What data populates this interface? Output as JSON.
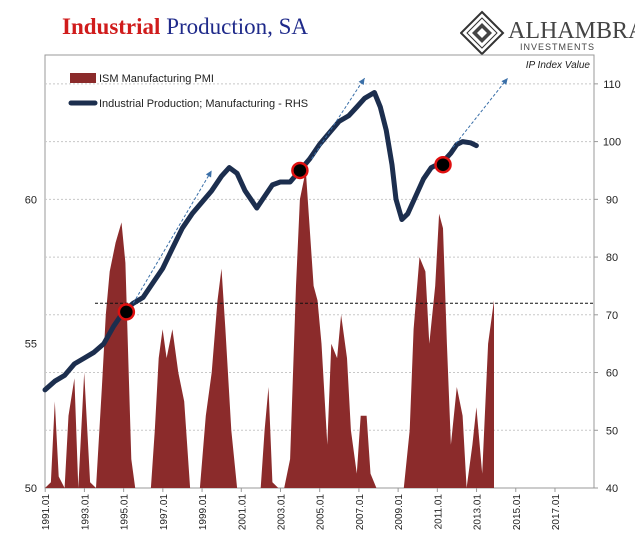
{
  "title": {
    "part1": "Industrial",
    "part2": "Production, SA"
  },
  "logo": {
    "name": "ALHAMBRA",
    "sub": "INVESTMENTS"
  },
  "colors": {
    "bar": "#8b2b2b",
    "line": "#1c2e4e",
    "arrow": "#3a6fa8",
    "marker": "#e01010",
    "title_red": "#d01c1c",
    "title_blue": "#1f2a8a"
  },
  "chart_data": {
    "type": "area",
    "annotation": "IP Index Value",
    "legend": [
      "ISM Manufacturing PMI",
      "Industrial Production; Manufacturing - RHS"
    ],
    "legend_position": "top-left",
    "left_axis": {
      "ylim": [
        50,
        65
      ],
      "ticks": [
        50,
        55,
        60
      ]
    },
    "right_axis": {
      "ylim": [
        40,
        115
      ],
      "ticks": [
        40,
        50,
        60,
        70,
        80,
        90,
        100,
        110
      ]
    },
    "x_ticks": [
      "1991.01",
      "1993.01",
      "1995.01",
      "1997.01",
      "1999.01",
      "2001.01",
      "2003.01",
      "2005.01",
      "2007.01",
      "2009.01",
      "2011.01",
      "2013.01",
      "2015.01",
      "2017.01"
    ],
    "xlim": [
      1991.0,
      2019.0
    ],
    "reference_line": {
      "axis": "right",
      "value": 72
    },
    "pmi": [
      [
        1991.0,
        40.8
      ],
      [
        1991.3,
        50.2
      ],
      [
        1991.5,
        53.0
      ],
      [
        1991.7,
        50.4
      ],
      [
        1992.0,
        47.5
      ],
      [
        1992.2,
        52.5
      ],
      [
        1992.5,
        53.8
      ],
      [
        1992.7,
        49.5
      ],
      [
        1993.0,
        54.0
      ],
      [
        1993.3,
        50.2
      ],
      [
        1993.6,
        49.5
      ],
      [
        1993.9,
        53.5
      ],
      [
        1994.1,
        56.0
      ],
      [
        1994.3,
        57.5
      ],
      [
        1994.6,
        58.5
      ],
      [
        1994.9,
        59.2
      ],
      [
        1995.1,
        57.8
      ],
      [
        1995.4,
        51.0
      ],
      [
        1995.6,
        47.5
      ],
      [
        1996.0,
        45.5
      ],
      [
        1996.4,
        49.5
      ],
      [
        1996.6,
        52.0
      ],
      [
        1996.8,
        54.5
      ],
      [
        1997.0,
        55.5
      ],
      [
        1997.2,
        54.5
      ],
      [
        1997.5,
        55.5
      ],
      [
        1997.8,
        54.0
      ],
      [
        1998.1,
        53.0
      ],
      [
        1998.4,
        49.5
      ],
      [
        1998.7,
        48.5
      ],
      [
        1998.9,
        46.5
      ],
      [
        1999.2,
        52.5
      ],
      [
        1999.5,
        54.0
      ],
      [
        1999.8,
        56.5
      ],
      [
        2000.0,
        57.6
      ],
      [
        2000.2,
        55.5
      ],
      [
        2000.5,
        52.0
      ],
      [
        2000.8,
        48.5
      ],
      [
        2001.0,
        42.5
      ],
      [
        2001.6,
        41.0
      ],
      [
        2002.0,
        48.0
      ],
      [
        2002.2,
        52.0
      ],
      [
        2002.4,
        53.5
      ],
      [
        2002.6,
        50.2
      ],
      [
        2002.9,
        48.5
      ],
      [
        2003.2,
        46.2
      ],
      [
        2003.5,
        51.0
      ],
      [
        2003.8,
        57.0
      ],
      [
        2004.0,
        60.0
      ],
      [
        2004.3,
        61.0
      ],
      [
        2004.5,
        59.0
      ],
      [
        2004.7,
        57.0
      ],
      [
        2004.9,
        56.5
      ],
      [
        2005.1,
        55.0
      ],
      [
        2005.4,
        51.5
      ],
      [
        2005.6,
        55.0
      ],
      [
        2005.9,
        54.5
      ],
      [
        2006.1,
        56.0
      ],
      [
        2006.4,
        54.5
      ],
      [
        2006.6,
        52.0
      ],
      [
        2006.9,
        50.5
      ],
      [
        2007.1,
        52.5
      ],
      [
        2007.4,
        52.5
      ],
      [
        2007.6,
        50.5
      ],
      [
        2007.9,
        49.5
      ],
      [
        2008.1,
        48.5
      ],
      [
        2008.5,
        45.0
      ],
      [
        2008.8,
        38.9
      ],
      [
        2009.0,
        35.5
      ],
      [
        2009.3,
        40.0
      ],
      [
        2009.6,
        52.0
      ],
      [
        2009.8,
        55.5
      ],
      [
        2010.1,
        58.0
      ],
      [
        2010.4,
        57.5
      ],
      [
        2010.6,
        55.0
      ],
      [
        2010.9,
        57.0
      ],
      [
        2011.1,
        59.5
      ],
      [
        2011.3,
        59.0
      ],
      [
        2011.5,
        55.0
      ],
      [
        2011.7,
        51.5
      ],
      [
        2012.0,
        53.5
      ],
      [
        2012.3,
        52.5
      ],
      [
        2012.5,
        50.0
      ],
      [
        2012.8,
        51.5
      ],
      [
        2013.0,
        52.8
      ],
      [
        2013.3,
        50.5
      ],
      [
        2013.6,
        55.0
      ],
      [
        2013.9,
        56.5
      ]
    ],
    "ip": [
      [
        1991.0,
        57
      ],
      [
        1991.5,
        58.5
      ],
      [
        1992.0,
        59.5
      ],
      [
        1992.5,
        61.5
      ],
      [
        1993.0,
        62.5
      ],
      [
        1993.5,
        63.5
      ],
      [
        1994.0,
        65
      ],
      [
        1994.5,
        68
      ],
      [
        1995.0,
        70.5
      ],
      [
        1995.5,
        72
      ],
      [
        1996.0,
        73
      ],
      [
        1996.5,
        75.5
      ],
      [
        1997.0,
        78
      ],
      [
        1997.5,
        81.5
      ],
      [
        1998.0,
        85
      ],
      [
        1998.5,
        87.5
      ],
      [
        1999.0,
        89.5
      ],
      [
        1999.5,
        91.5
      ],
      [
        2000.0,
        94
      ],
      [
        2000.4,
        95.5
      ],
      [
        2000.8,
        94.5
      ],
      [
        2001.2,
        91.5
      ],
      [
        2001.8,
        88.5
      ],
      [
        2002.2,
        90.5
      ],
      [
        2002.6,
        92.5
      ],
      [
        2003.0,
        93
      ],
      [
        2003.5,
        93
      ],
      [
        2004.0,
        95
      ],
      [
        2004.5,
        97
      ],
      [
        2005.0,
        99.5
      ],
      [
        2005.5,
        101.5
      ],
      [
        2006.0,
        103.5
      ],
      [
        2006.5,
        104.5
      ],
      [
        2006.9,
        106
      ],
      [
        2007.3,
        107.5
      ],
      [
        2007.8,
        108.5
      ],
      [
        2008.1,
        106
      ],
      [
        2008.4,
        102
      ],
      [
        2008.7,
        96
      ],
      [
        2008.9,
        90
      ],
      [
        2009.2,
        86.5
      ],
      [
        2009.5,
        87.5
      ],
      [
        2009.9,
        90.5
      ],
      [
        2010.3,
        93.5
      ],
      [
        2010.7,
        95.5
      ],
      [
        2011.0,
        96
      ],
      [
        2011.3,
        96.5
      ],
      [
        2011.7,
        98
      ],
      [
        2012.0,
        99.5
      ],
      [
        2012.3,
        100
      ],
      [
        2012.7,
        99.8
      ],
      [
        2013.0,
        99.3
      ]
    ],
    "markers_ip": [
      [
        1995.15,
        70.5
      ],
      [
        2004.0,
        95.0
      ],
      [
        2011.3,
        96.0
      ]
    ],
    "arrows_ip": [
      [
        [
          1995.5,
          72
        ],
        [
          1999.5,
          95
        ]
      ],
      [
        [
          2004.6,
          97
        ],
        [
          2007.3,
          111
        ]
      ],
      [
        [
          2011.8,
          99
        ],
        [
          2014.6,
          111
        ]
      ]
    ]
  }
}
